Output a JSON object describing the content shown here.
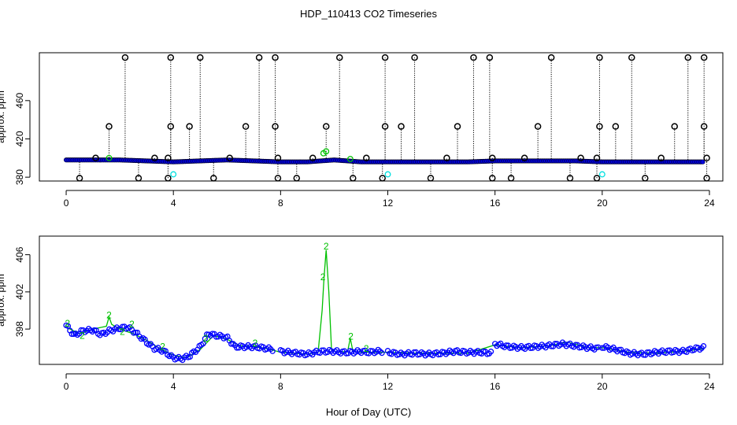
{
  "figure": {
    "title": "HDP_110413  CO2 Timeseries",
    "xlabel": "Hour of Day (UTC)"
  },
  "colors": {
    "axis": "#000000",
    "black_points": "#000000",
    "blue_points": "#0000ff",
    "green_series": "#00c000",
    "cyan_points": "#00e0e0"
  },
  "chart_data": [
    {
      "type": "scatter",
      "title": "",
      "xlabel": "",
      "ylabel": "approx. ppm",
      "xlim": [
        -1,
        24.5
      ],
      "ylim": [
        376,
        510
      ],
      "x_ticks": [
        0,
        4,
        8,
        12,
        16,
        20,
        24
      ],
      "y_ticks": [
        380,
        420,
        460
      ],
      "grid": false,
      "baseline": {
        "name": "",
        "x": [
          0,
          1,
          2,
          3,
          4,
          5,
          6,
          7,
          8,
          9,
          10,
          11,
          12,
          13,
          14,
          15,
          16,
          17,
          18,
          19,
          20,
          21,
          22,
          23,
          23.8
        ],
        "y": [
          398,
          398,
          398,
          397,
          396,
          397,
          398,
          397,
          396,
          396,
          398,
          396,
          396,
          396,
          396,
          396,
          397,
          397,
          397,
          397,
          396,
          396,
          396,
          396,
          396
        ]
      },
      "high_points": {
        "name": "",
        "x": [
          2.2,
          3.9,
          5.0,
          7.2,
          7.8,
          10.2,
          11.9,
          13.0,
          15.2,
          15.8,
          18.1,
          19.9,
          21.1,
          23.2,
          23.8
        ],
        "y": [
          505,
          505,
          505,
          505,
          505,
          505,
          505,
          505,
          505,
          505,
          505,
          505,
          505,
          505,
          505
        ]
      },
      "mid_points": {
        "name": "",
        "x": [
          1.6,
          3.9,
          4.6,
          6.7,
          7.8,
          9.7,
          11.9,
          12.5,
          14.6,
          17.6,
          19.9,
          20.5,
          22.7,
          23.8
        ],
        "y": [
          433,
          433,
          433,
          433,
          433,
          433,
          433,
          433,
          433,
          433,
          433,
          433,
          433,
          433
        ]
      },
      "near_baseline_points": {
        "name": "",
        "x": [
          1.1,
          3.3,
          3.8,
          6.1,
          7.9,
          9.2,
          11.2,
          14.2,
          15.9,
          17.1,
          19.2,
          19.8,
          22.2,
          23.9
        ],
        "y": [
          400,
          400,
          400,
          400,
          400,
          400,
          400,
          400,
          400,
          400,
          400,
          400,
          400,
          400
        ]
      },
      "low_points": {
        "name": "",
        "x": [
          0.5,
          2.7,
          3.8,
          5.5,
          7.9,
          8.6,
          10.7,
          11.8,
          13.6,
          15.9,
          16.6,
          18.8,
          19.8,
          21.6,
          23.9
        ],
        "y": [
          379,
          379,
          379,
          379,
          379,
          379,
          379,
          379,
          379,
          379,
          379,
          379,
          379,
          379,
          379
        ]
      },
      "cyan_points": {
        "name": "",
        "x": [
          4.0,
          12.0,
          20.0
        ],
        "y": [
          383,
          383,
          383
        ]
      },
      "green_points": {
        "name": "",
        "x": [
          9.6,
          9.7,
          1.6,
          10.6
        ],
        "y": [
          405,
          407,
          400,
          399
        ]
      }
    },
    {
      "type": "line",
      "title": "",
      "xlabel": "Hour of Day (UTC)",
      "ylabel": "approx. ppm",
      "xlim": [
        -1,
        24.5
      ],
      "ylim": [
        394.2,
        408.0
      ],
      "x_ticks": [
        0,
        4,
        8,
        12,
        16,
        20,
        24
      ],
      "y_ticks": [
        398,
        402,
        406
      ],
      "grid": false,
      "blue_series": {
        "name": "",
        "segments": [
          {
            "x": [
              0.0,
              0.3,
              0.6,
              1.0,
              1.3,
              1.6,
              2.0,
              2.3,
              2.6,
              3.0,
              3.3,
              3.6,
              4.0,
              4.3,
              4.6,
              5.0,
              5.3,
              5.6,
              6.0,
              6.3,
              6.6,
              7.0,
              7.3,
              7.7
            ],
            "y": [
              398.4,
              397.3,
              397.8,
              397.9,
              397.4,
              397.8,
              398.1,
              398.2,
              397.6,
              396.6,
              395.9,
              395.7,
              394.9,
              394.8,
              395.1,
              396.1,
              397.5,
              397.3,
              397.1,
              396.1,
              396.1,
              396.1,
              396.0,
              395.8
            ]
          },
          {
            "x": [
              8.0,
              8.3,
              8.6,
              9.0,
              9.3,
              9.5,
              9.8,
              10.0,
              10.3,
              10.6,
              11.0,
              11.3,
              11.6,
              11.8
            ],
            "y": [
              395.6,
              395.5,
              395.4,
              395.3,
              395.5,
              395.6,
              395.6,
              395.6,
              395.5,
              395.5,
              395.6,
              395.5,
              395.6,
              395.6
            ]
          },
          {
            "x": [
              12.0,
              12.5,
              13.0,
              13.5,
              14.0,
              14.5,
              15.0,
              15.5,
              15.9
            ],
            "y": [
              395.5,
              395.3,
              395.4,
              395.3,
              395.4,
              395.6,
              395.5,
              395.5,
              395.4
            ]
          },
          {
            "x": [
              16.0,
              16.5,
              17.0,
              17.5,
              18.0,
              18.5,
              19.0,
              19.5,
              19.9
            ],
            "y": [
              396.4,
              396.1,
              396.0,
              396.1,
              396.2,
              396.4,
              396.2,
              396.0,
              395.9
            ]
          },
          {
            "x": [
              20.0,
              20.5,
              21.0,
              21.5,
              22.0,
              22.5,
              23.0,
              23.5,
              23.8
            ],
            "y": [
              396.1,
              395.8,
              395.4,
              395.3,
              395.5,
              395.6,
              395.6,
              395.9,
              396.0
            ]
          }
        ]
      },
      "green_series": {
        "name": "",
        "x": [
          0.0,
          0.5,
          1.0,
          1.5,
          1.6,
          1.7,
          2.0,
          2.5,
          3.0,
          3.5,
          4.0,
          4.5,
          5.0,
          5.5,
          6.0,
          6.5,
          7.0,
          7.5,
          8.0,
          8.5,
          9.0,
          9.4,
          9.55,
          9.62,
          9.7,
          9.8,
          9.9,
          10.1,
          10.5,
          10.6,
          10.7,
          11.0,
          11.5,
          12.0,
          13.0,
          14.0,
          15.0,
          16.0,
          17.0,
          18.0,
          18.7,
          19.5,
          20.0,
          21.0,
          22.0,
          23.0,
          23.8
        ],
        "y": [
          398.2,
          397.5,
          398.0,
          398.3,
          399.3,
          398.5,
          398.0,
          397.5,
          396.8,
          395.9,
          395.2,
          394.9,
          395.8,
          397.3,
          396.9,
          396.2,
          396.1,
          395.9,
          395.5,
          395.4,
          395.3,
          395.5,
          400.0,
          403.5,
          406.5,
          402.0,
          395.8,
          395.5,
          395.6,
          397.0,
          395.6,
          395.5,
          395.5,
          395.5,
          395.4,
          395.4,
          395.4,
          396.3,
          396.0,
          396.2,
          396.6,
          396.0,
          396.0,
          395.5,
          395.4,
          395.6,
          395.9
        ]
      },
      "green_labels": {
        "text": "2",
        "x": [
          0.05,
          0.6,
          1.6,
          2.1,
          2.45,
          3.6,
          5.2,
          7.05,
          9.58,
          9.7,
          10.62,
          11.2
        ],
        "y": [
          398.6,
          397.3,
          399.5,
          397.7,
          398.5,
          396.1,
          397.0,
          396.5,
          403.6,
          406.9,
          397.2,
          395.9
        ]
      }
    }
  ]
}
